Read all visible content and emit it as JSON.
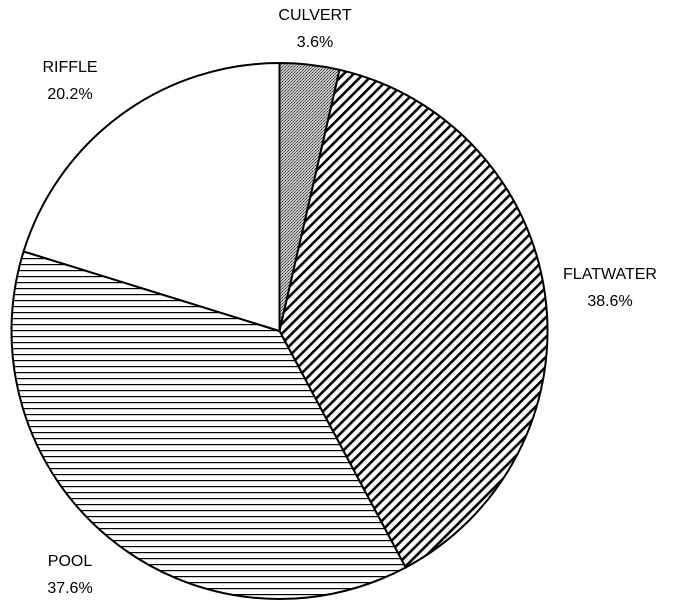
{
  "chart_data": {
    "type": "pie",
    "categories": [
      "CULVERT",
      "FLATWATER",
      "POOL",
      "RIFFLE"
    ],
    "values": [
      3.6,
      38.6,
      37.6,
      20.2
    ],
    "value_labels": [
      "3.6%",
      "38.6%",
      "37.6%",
      "20.2%"
    ],
    "patterns": [
      "dots",
      "diagonal",
      "horizontal",
      "none"
    ]
  }
}
